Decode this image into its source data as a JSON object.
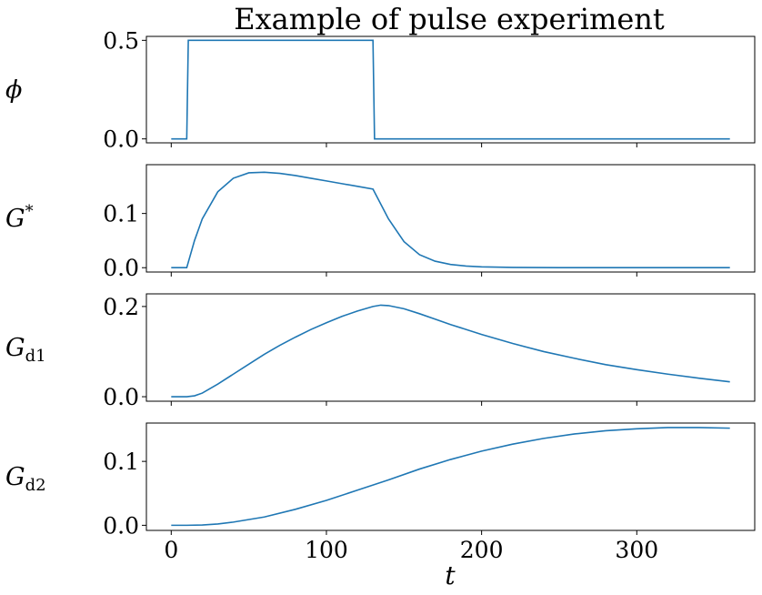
{
  "chart_data": {
    "type": "line",
    "title": "Example of pulse experiment",
    "xlabel": "t",
    "xlim": [
      -16,
      376
    ],
    "xticks": [
      0,
      100,
      200,
      300
    ],
    "xtick_labels": [
      "0",
      "100",
      "200",
      "300"
    ],
    "grid": false,
    "panels": [
      {
        "ylabel": "ϕ",
        "ylim": [
          -0.02,
          0.52
        ],
        "yticks": [
          0.0,
          0.5
        ],
        "ytick_labels": [
          "0.0",
          "0.5"
        ],
        "series": [
          {
            "x": [
              0,
              10,
              11,
              130,
              131,
              360
            ],
            "values": [
              0,
              0,
              0.5,
              0.5,
              0,
              0
            ]
          }
        ]
      },
      {
        "ylabel": "G*",
        "ylabel_base": "G",
        "ylabel_sup": "*",
        "ylim": [
          -0.008,
          0.19
        ],
        "yticks": [
          0.0,
          0.1
        ],
        "ytick_labels": [
          "0.0",
          "0.1"
        ],
        "series": [
          {
            "x": [
              0,
              10,
              15,
              20,
              30,
              40,
              50,
              60,
              70,
              80,
              90,
              100,
              110,
              120,
              130,
              140,
              150,
              160,
              170,
              180,
              190,
              200,
              220,
              250,
              300,
              360
            ],
            "values": [
              0,
              0,
              0.05,
              0.09,
              0.14,
              0.165,
              0.175,
              0.176,
              0.174,
              0.17,
              0.165,
              0.16,
              0.155,
              0.15,
              0.145,
              0.09,
              0.048,
              0.024,
              0.012,
              0.006,
              0.003,
              0.0015,
              0.0005,
              0.0001,
              0,
              0
            ]
          }
        ]
      },
      {
        "ylabel": "Gd1",
        "ylabel_base": "G",
        "ylabel_sub": "d1",
        "ylim": [
          -0.01,
          0.228
        ],
        "yticks": [
          0.0,
          0.2
        ],
        "ytick_labels": [
          "0.0",
          "0.2"
        ],
        "series": [
          {
            "x": [
              0,
              10,
              15,
              20,
              30,
              40,
              50,
              60,
              70,
              80,
              90,
              100,
              110,
              120,
              130,
              135,
              140,
              150,
              160,
              170,
              180,
              200,
              220,
              240,
              260,
              280,
              300,
              320,
              340,
              360
            ],
            "values": [
              0,
              0,
              0.002,
              0.008,
              0.028,
              0.05,
              0.072,
              0.094,
              0.114,
              0.132,
              0.149,
              0.164,
              0.178,
              0.19,
              0.2,
              0.203,
              0.202,
              0.195,
              0.184,
              0.172,
              0.16,
              0.138,
              0.118,
              0.1,
              0.085,
              0.071,
              0.06,
              0.05,
              0.041,
              0.033
            ]
          }
        ]
      },
      {
        "ylabel": "Gd2",
        "ylabel_base": "G",
        "ylabel_sub": "d2",
        "ylim": [
          -0.008,
          0.16
        ],
        "yticks": [
          0.0,
          0.1
        ],
        "ytick_labels": [
          "0.0",
          "0.1"
        ],
        "series": [
          {
            "x": [
              0,
              10,
              20,
              30,
              40,
              60,
              80,
              100,
              120,
              140,
              160,
              180,
              200,
              220,
              240,
              260,
              280,
              300,
              320,
              340,
              360
            ],
            "values": [
              0,
              0,
              0.0005,
              0.002,
              0.005,
              0.013,
              0.025,
              0.039,
              0.055,
              0.071,
              0.088,
              0.103,
              0.116,
              0.127,
              0.136,
              0.143,
              0.148,
              0.151,
              0.153,
              0.153,
              0.152
            ]
          }
        ]
      }
    ]
  }
}
